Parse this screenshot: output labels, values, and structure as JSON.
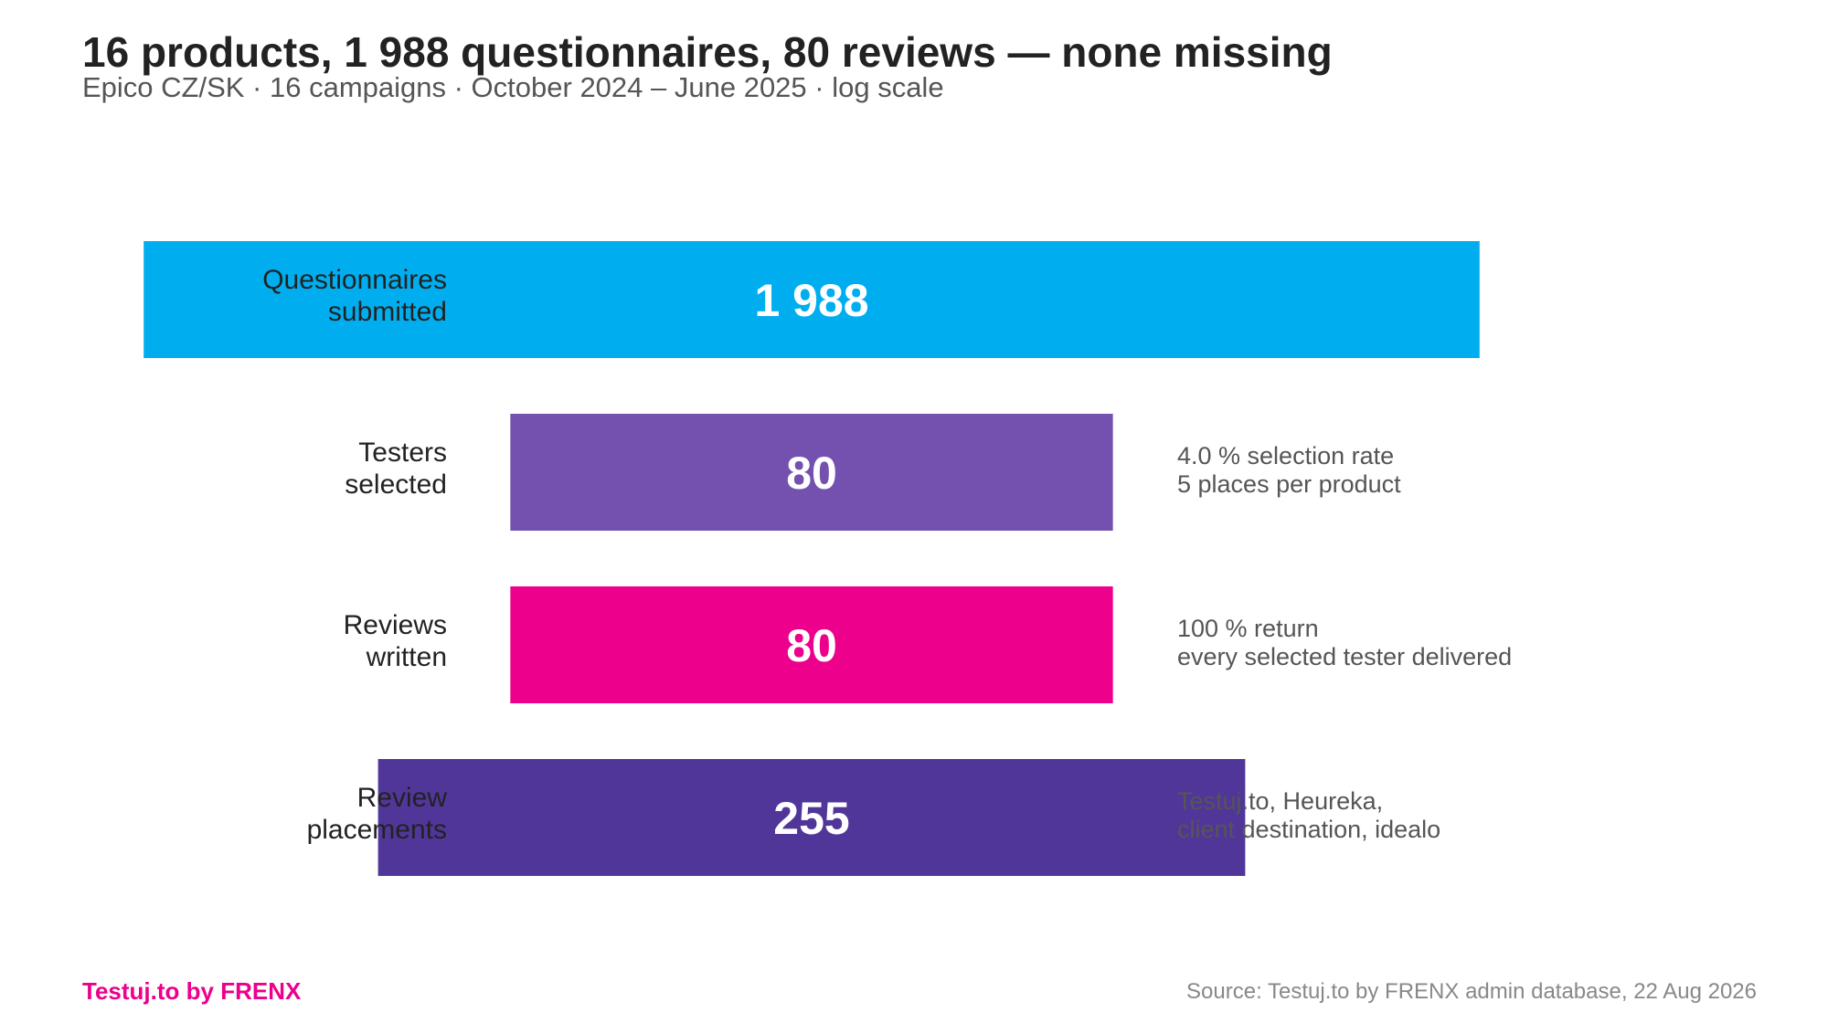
{
  "header": {
    "title": "16 products, 1 988 questionnaires, 80 reviews — none missing",
    "subtitle": "Epico CZ/SK · 16 campaigns · October 2024 – June 2025 · log scale"
  },
  "chart_data": {
    "type": "bar",
    "orientation": "horizontal-funnel",
    "scale": "log",
    "categories": [
      [
        "Questionnaires",
        "submitted"
      ],
      [
        "Testers",
        "selected"
      ],
      [
        "Reviews",
        "written"
      ],
      [
        "Review",
        "placements"
      ]
    ],
    "values": [
      1988,
      80,
      80,
      255
    ],
    "value_labels": [
      "1 988",
      "80",
      "80",
      "255"
    ],
    "colors": [
      "#00AEEF",
      "#7451AE",
      "#EC008C",
      "#51369A"
    ],
    "annotations": [
      [],
      [
        "4.0 % selection rate",
        "5 places per product"
      ],
      [
        "100 % return",
        "every selected tester delivered"
      ],
      [
        "Testuj.to, Heureka,",
        "client destination, idealo"
      ]
    ],
    "grid": false,
    "legend": "none"
  },
  "footer": {
    "brand": "Testuj.to by FRENX",
    "brand_color": "#EC008C",
    "source": "Source: Testuj.to by FRENX admin database, 22 Aug 2026"
  }
}
